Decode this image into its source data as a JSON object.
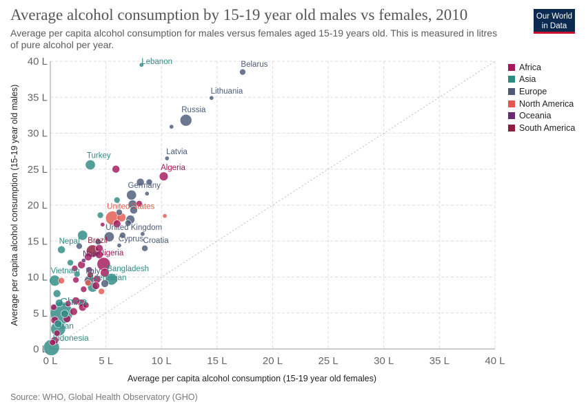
{
  "header": {
    "title": "Average alcohol consumption by 15-19 year old males vs females, 2010",
    "subtitle": "Average per capita alcohol consumption for males versus females aged 15-19 years old. This is measured in litres of pure alcohol per year.",
    "logo_line1": "Our World",
    "logo_line2": "in Data"
  },
  "footer": {
    "source": "Source: WHO, Global Health Observatory (GHO)"
  },
  "colors": {
    "Africa": "#a2185b",
    "Asia": "#2f8a84",
    "Europe": "#4c5a78",
    "North America": "#e3584f",
    "Oceania": "#6b2a6f",
    "South America": "#8b1e3c",
    "grid": "#dddddd",
    "diagonal": "#bbbbbb"
  },
  "chart_data": {
    "type": "scatter",
    "xlabel": "Average per capita alcohol consumption (15-19 year old females)",
    "ylabel": "Average per capita alcohol consumption (15-19 year old males)",
    "xlim": [
      0,
      40
    ],
    "ylim": [
      0,
      40
    ],
    "x_ticks": [
      "0 L",
      "5 L",
      "10 L",
      "15 L",
      "20 L",
      "25 L",
      "30 L",
      "35 L",
      "40 L"
    ],
    "y_ticks": [
      "0 L",
      "5 L",
      "10 L",
      "15 L",
      "20 L",
      "25 L",
      "30 L",
      "35 L",
      "40 L"
    ],
    "grid": true,
    "diagonal_line": true,
    "legend_position": "right",
    "legend": [
      "Africa",
      "Asia",
      "Europe",
      "North America",
      "Oceania",
      "South America"
    ],
    "labeled_points": [
      {
        "label": "Lebanon",
        "x": 8.2,
        "y": 39.5,
        "region": "Asia",
        "size": 1
      },
      {
        "label": "Belarus",
        "x": 17.3,
        "y": 38.5,
        "region": "Europe",
        "size": 2
      },
      {
        "label": "Lithuania",
        "x": 14.5,
        "y": 34.9,
        "region": "Europe",
        "size": 1
      },
      {
        "label": "Russia",
        "x": 12.2,
        "y": 31.8,
        "region": "Europe",
        "size": 7
      },
      {
        "label": "Latvia",
        "x": 10.5,
        "y": 26.5,
        "region": "Europe",
        "size": 1
      },
      {
        "label": "Turkey",
        "x": 3.6,
        "y": 25.6,
        "region": "Asia",
        "size": 5
      },
      {
        "label": "Algeria",
        "x": 10.2,
        "y": 24.0,
        "region": "Africa",
        "size": 4
      },
      {
        "label": "Germany",
        "x": 7.3,
        "y": 21.4,
        "region": "Europe",
        "size": 5
      },
      {
        "label": "United States",
        "x": 5.6,
        "y": 18.2,
        "region": "North America",
        "size": 10
      },
      {
        "label": "United Kingdom",
        "x": 5.3,
        "y": 15.6,
        "region": "Europe",
        "size": 5
      },
      {
        "label": "Cyprus",
        "x": 6.2,
        "y": 14.4,
        "region": "Europe",
        "size": 1
      },
      {
        "label": "Croatia",
        "x": 8.5,
        "y": 14.0,
        "region": "Europe",
        "size": 2
      },
      {
        "label": "Brazil",
        "x": 3.8,
        "y": 13.6,
        "region": "South America",
        "size": 8
      },
      {
        "label": "Nepal",
        "x": 1.0,
        "y": 13.8,
        "region": "Asia",
        "size": 3
      },
      {
        "label": "Niue",
        "x": 3.0,
        "y": 12.3,
        "region": "Oceania",
        "size": 1
      },
      {
        "label": "Nigeria",
        "x": 4.8,
        "y": 11.8,
        "region": "Africa",
        "size": 9
      },
      {
        "label": "Vietnam",
        "x": 0.4,
        "y": 9.5,
        "region": "Asia",
        "size": 6
      },
      {
        "label": "Italy",
        "x": 3.5,
        "y": 9.5,
        "region": "Europe",
        "size": 5
      },
      {
        "label": "Bangladesh",
        "x": 5.5,
        "y": 9.7,
        "region": "Asia",
        "size": 7
      },
      {
        "label": "Azerbaijan",
        "x": 3.8,
        "y": 8.6,
        "region": "Asia",
        "size": 5
      },
      {
        "label": "China",
        "x": 1.0,
        "y": 5.0,
        "region": "Asia",
        "size": 26
      },
      {
        "label": "Iran",
        "x": 0.7,
        "y": 2.8,
        "region": "Asia",
        "size": 11
      },
      {
        "label": "Indonesia",
        "x": 0.1,
        "y": 0.2,
        "region": "Asia",
        "size": 13
      }
    ],
    "points": [
      {
        "x": 8.1,
        "y": 23.2,
        "region": "Europe",
        "size": 3
      },
      {
        "x": 8.9,
        "y": 23.2,
        "region": "Europe",
        "size": 2
      },
      {
        "x": 5.9,
        "y": 25.0,
        "region": "Africa",
        "size": 3
      },
      {
        "x": 10.9,
        "y": 30.9,
        "region": "Europe",
        "size": 1
      },
      {
        "x": 8.7,
        "y": 21.6,
        "region": "Europe",
        "size": 1
      },
      {
        "x": 7.4,
        "y": 20.1,
        "region": "Europe",
        "size": 4
      },
      {
        "x": 8.0,
        "y": 20.2,
        "region": "Africa",
        "size": 2
      },
      {
        "x": 6.0,
        "y": 20.7,
        "region": "Asia",
        "size": 2
      },
      {
        "x": 7.5,
        "y": 19.3,
        "region": "Europe",
        "size": 3
      },
      {
        "x": 6.2,
        "y": 19.0,
        "region": "Europe",
        "size": 2
      },
      {
        "x": 7.2,
        "y": 18.0,
        "region": "Europe",
        "size": 4
      },
      {
        "x": 6.4,
        "y": 18.3,
        "region": "North America",
        "size": 4
      },
      {
        "x": 6.0,
        "y": 17.4,
        "region": "Africa",
        "size": 3
      },
      {
        "x": 7.0,
        "y": 17.5,
        "region": "Europe",
        "size": 2
      },
      {
        "x": 4.5,
        "y": 18.6,
        "region": "Asia",
        "size": 2
      },
      {
        "x": 4.7,
        "y": 17.3,
        "region": "Africa",
        "size": 1
      },
      {
        "x": 10.3,
        "y": 18.5,
        "region": "North America",
        "size": 1
      },
      {
        "x": 8.3,
        "y": 16.0,
        "region": "Europe",
        "size": 1
      },
      {
        "x": 2.9,
        "y": 15.8,
        "region": "Asia",
        "size": 5
      },
      {
        "x": 6.5,
        "y": 15.8,
        "region": "Europe",
        "size": 2
      },
      {
        "x": 4.3,
        "y": 14.9,
        "region": "Europe",
        "size": 2
      },
      {
        "x": 2.6,
        "y": 14.3,
        "region": "Europe",
        "size": 2
      },
      {
        "x": 4.4,
        "y": 14.0,
        "region": "Africa",
        "size": 3
      },
      {
        "x": 3.4,
        "y": 12.8,
        "region": "Africa",
        "size": 3
      },
      {
        "x": 4.4,
        "y": 13.1,
        "region": "Africa",
        "size": 3
      },
      {
        "x": 2.8,
        "y": 11.7,
        "region": "Africa",
        "size": 3
      },
      {
        "x": 4.9,
        "y": 10.6,
        "region": "Africa",
        "size": 4
      },
      {
        "x": 3.5,
        "y": 11.0,
        "region": "Oceania",
        "size": 2
      },
      {
        "x": 2.2,
        "y": 11.2,
        "region": "Africa",
        "size": 2
      },
      {
        "x": 1.8,
        "y": 12.0,
        "region": "Asia",
        "size": 2
      },
      {
        "x": 2.4,
        "y": 10.4,
        "region": "Asia",
        "size": 2
      },
      {
        "x": 2.3,
        "y": 9.6,
        "region": "Africa",
        "size": 2
      },
      {
        "x": 1.0,
        "y": 9.5,
        "region": "North America",
        "size": 2
      },
      {
        "x": 4.2,
        "y": 9.7,
        "region": "Africa",
        "size": 3
      },
      {
        "x": 4.1,
        "y": 8.8,
        "region": "Africa",
        "size": 3
      },
      {
        "x": 4.9,
        "y": 9.1,
        "region": "Europe",
        "size": 3
      },
      {
        "x": 3.6,
        "y": 10.3,
        "region": "South America",
        "size": 2
      },
      {
        "x": 3.4,
        "y": 9.2,
        "region": "North America",
        "size": 2
      },
      {
        "x": 4.6,
        "y": 8.0,
        "region": "North America",
        "size": 2
      },
      {
        "x": 3.0,
        "y": 8.3,
        "region": "Africa",
        "size": 2
      },
      {
        "x": 2.8,
        "y": 6.4,
        "region": "Africa",
        "size": 3
      },
      {
        "x": 2.3,
        "y": 6.7,
        "region": "Africa",
        "size": 3
      },
      {
        "x": 3.2,
        "y": 6.1,
        "region": "Africa",
        "size": 2
      },
      {
        "x": 2.9,
        "y": 5.8,
        "region": "Africa",
        "size": 3
      },
      {
        "x": 1.5,
        "y": 4.2,
        "region": "Africa",
        "size": 3
      },
      {
        "x": 0.6,
        "y": 7.7,
        "region": "Asia",
        "size": 3
      },
      {
        "x": 0.8,
        "y": 6.4,
        "region": "Asia",
        "size": 3
      },
      {
        "x": 1.6,
        "y": 6.3,
        "region": "Africa",
        "size": 2
      },
      {
        "x": 2.1,
        "y": 5.2,
        "region": "Africa",
        "size": 3
      },
      {
        "x": 0.3,
        "y": 5.8,
        "region": "Africa",
        "size": 2
      },
      {
        "x": 1.3,
        "y": 4.9,
        "region": "Asia",
        "size": 3
      },
      {
        "x": 0.4,
        "y": 4.0,
        "region": "Africa",
        "size": 3
      },
      {
        "x": 0.6,
        "y": 2.2,
        "region": "Africa",
        "size": 2
      },
      {
        "x": 0.4,
        "y": 1.2,
        "region": "Africa",
        "size": 3
      },
      {
        "x": 0.2,
        "y": 0.9,
        "region": "Africa",
        "size": 2
      },
      {
        "x": 0.7,
        "y": 3.5,
        "region": "Asia",
        "size": 3
      }
    ]
  }
}
